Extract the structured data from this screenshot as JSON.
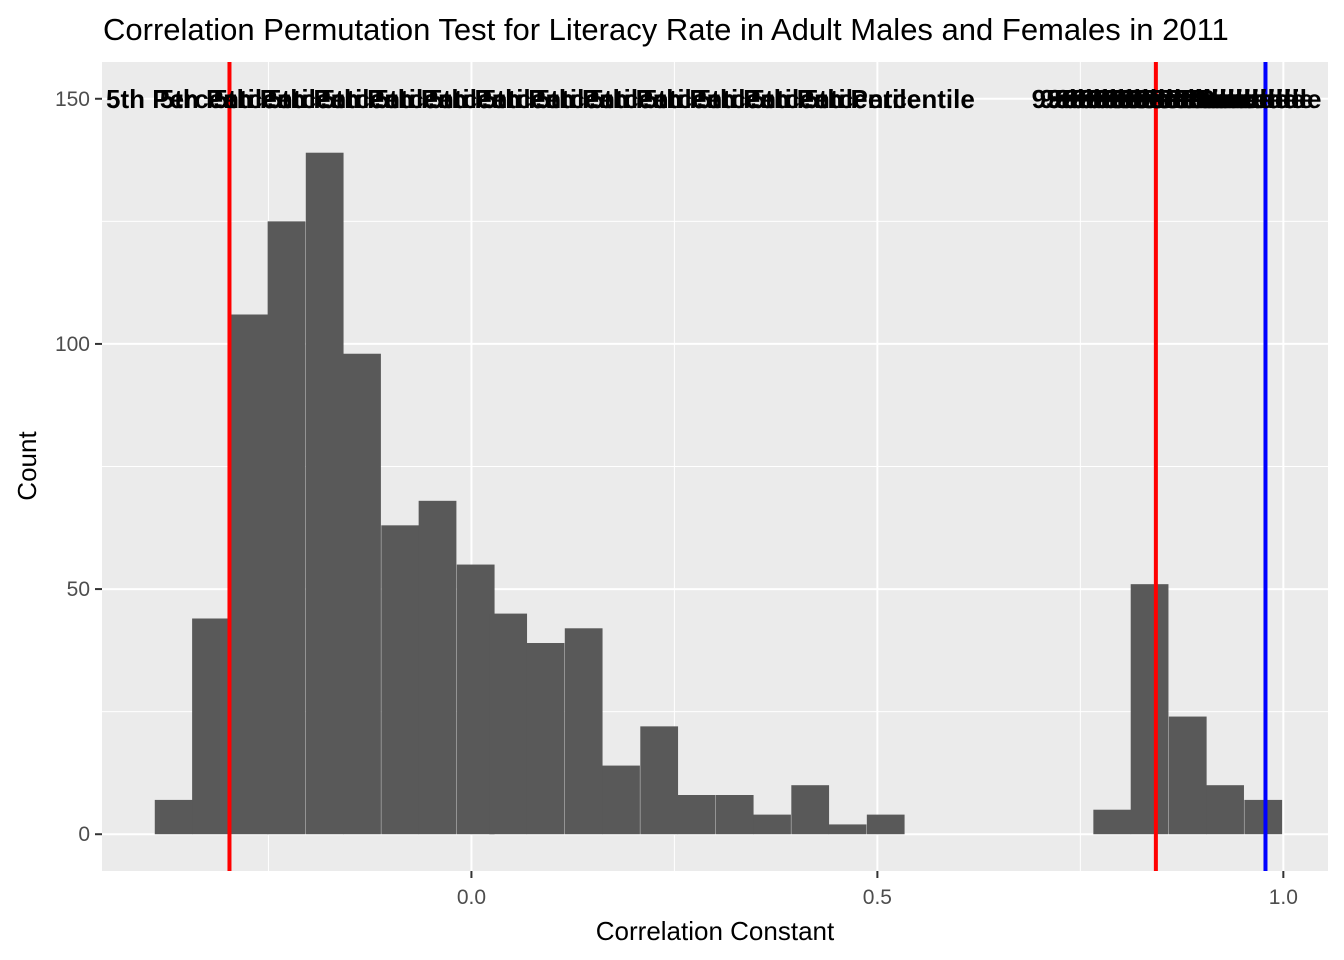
{
  "chart_data": {
    "type": "bar",
    "title": "Correlation Permutation Test for Literacy Rate in Adult Males and Females in 2011",
    "xlabel": "Correlation Constant",
    "ylabel": "Count",
    "xlim": [
      -0.455,
      1.055
    ],
    "ylim": [
      -7.5,
      157.5
    ],
    "x_ticks": [
      0.0,
      0.5,
      1.0
    ],
    "x_tick_labels": [
      "0.0",
      "0.5",
      "1.0"
    ],
    "y_ticks": [
      0,
      50,
      100,
      150
    ],
    "y_tick_labels": [
      "0",
      "50",
      "100",
      "150"
    ],
    "bin_width": 0.0465,
    "bins": [
      {
        "start": -0.39,
        "count": 7
      },
      {
        "start": -0.344,
        "count": 44
      },
      {
        "start": -0.297,
        "count": 106
      },
      {
        "start": -0.251,
        "count": 125
      },
      {
        "start": -0.204,
        "count": 139
      },
      {
        "start": -0.158,
        "count": 98
      },
      {
        "start": -0.111,
        "count": 63
      },
      {
        "start": -0.065,
        "count": 68
      },
      {
        "start": -0.018,
        "count": 55
      },
      {
        "start": 0.022,
        "count": 45
      },
      {
        "start": 0.068,
        "count": 39
      },
      {
        "start": 0.115,
        "count": 42
      },
      {
        "start": 0.161,
        "count": 14
      },
      {
        "start": 0.208,
        "count": 22
      },
      {
        "start": 0.254,
        "count": 8
      },
      {
        "start": 0.301,
        "count": 8
      },
      {
        "start": 0.347,
        "count": 4
      },
      {
        "start": 0.394,
        "count": 10
      },
      {
        "start": 0.44,
        "count": 2
      },
      {
        "start": 0.487,
        "count": 4
      },
      {
        "start": 0.533,
        "count": 0
      },
      {
        "start": 0.58,
        "count": 0
      },
      {
        "start": 0.626,
        "count": 0
      },
      {
        "start": 0.673,
        "count": 0
      },
      {
        "start": 0.719,
        "count": 0
      },
      {
        "start": 0.766,
        "count": 5
      },
      {
        "start": 0.812,
        "count": 51
      },
      {
        "start": 0.859,
        "count": 24
      },
      {
        "start": 0.905,
        "count": 10
      },
      {
        "start": 0.952,
        "count": 7
      }
    ],
    "vlines": [
      {
        "x": -0.298,
        "color": "#ff0000"
      },
      {
        "x": 0.843,
        "color": "#ff0000"
      },
      {
        "x": 0.978,
        "color": "#0000ff"
      }
    ],
    "overplotted_labels": {
      "y": 150,
      "left_label": {
        "x": -0.45,
        "text": "5th Percentile"
      },
      "right_label": {
        "x": 0.69,
        "text": "95th Percentile"
      }
    },
    "grid": true,
    "colors": {
      "panel": "#ebebeb",
      "grid": "#ffffff",
      "bar": "#595959"
    }
  }
}
